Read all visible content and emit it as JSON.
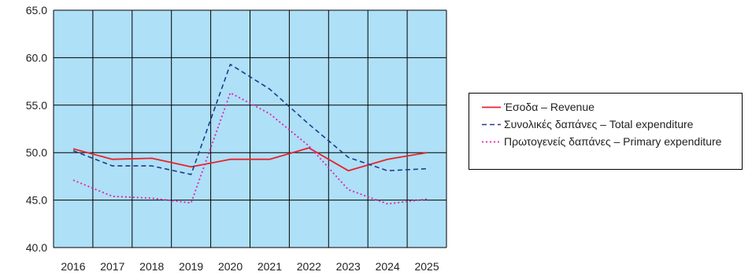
{
  "chart_data": {
    "type": "line",
    "title": "",
    "xlabel": "",
    "ylabel": "",
    "categories": [
      "2016",
      "2017",
      "2018",
      "2019",
      "2020",
      "2021",
      "2022",
      "2023",
      "2024",
      "2025"
    ],
    "ylim": [
      40.0,
      65.0
    ],
    "yticks": [
      "40.0",
      "45.0",
      "50.0",
      "55.0",
      "60.0",
      "65.0"
    ],
    "grid": true,
    "plot_background": "#aee0f7",
    "legend_position": "right",
    "series": [
      {
        "name": "Έσοδα – Revenue",
        "color": "#e8222a",
        "style": "solid",
        "values": [
          50.4,
          49.3,
          49.4,
          48.5,
          49.3,
          49.3,
          50.5,
          48.1,
          49.3,
          50.0
        ]
      },
      {
        "name": "Συνολικές δαπάνες – Total expenditure",
        "color": "#1f3a8a",
        "style": "dashed",
        "values": [
          50.2,
          48.6,
          48.6,
          47.7,
          59.3,
          56.7,
          53.0,
          49.5,
          48.1,
          48.3
        ]
      },
      {
        "name": "Πρωτογενείς δαπάνες – Primary expenditure",
        "color": "#e020b0",
        "style": "dotted",
        "values": [
          47.1,
          45.4,
          45.2,
          44.7,
          56.3,
          54.1,
          50.7,
          46.1,
          44.6,
          45.1
        ]
      }
    ]
  }
}
